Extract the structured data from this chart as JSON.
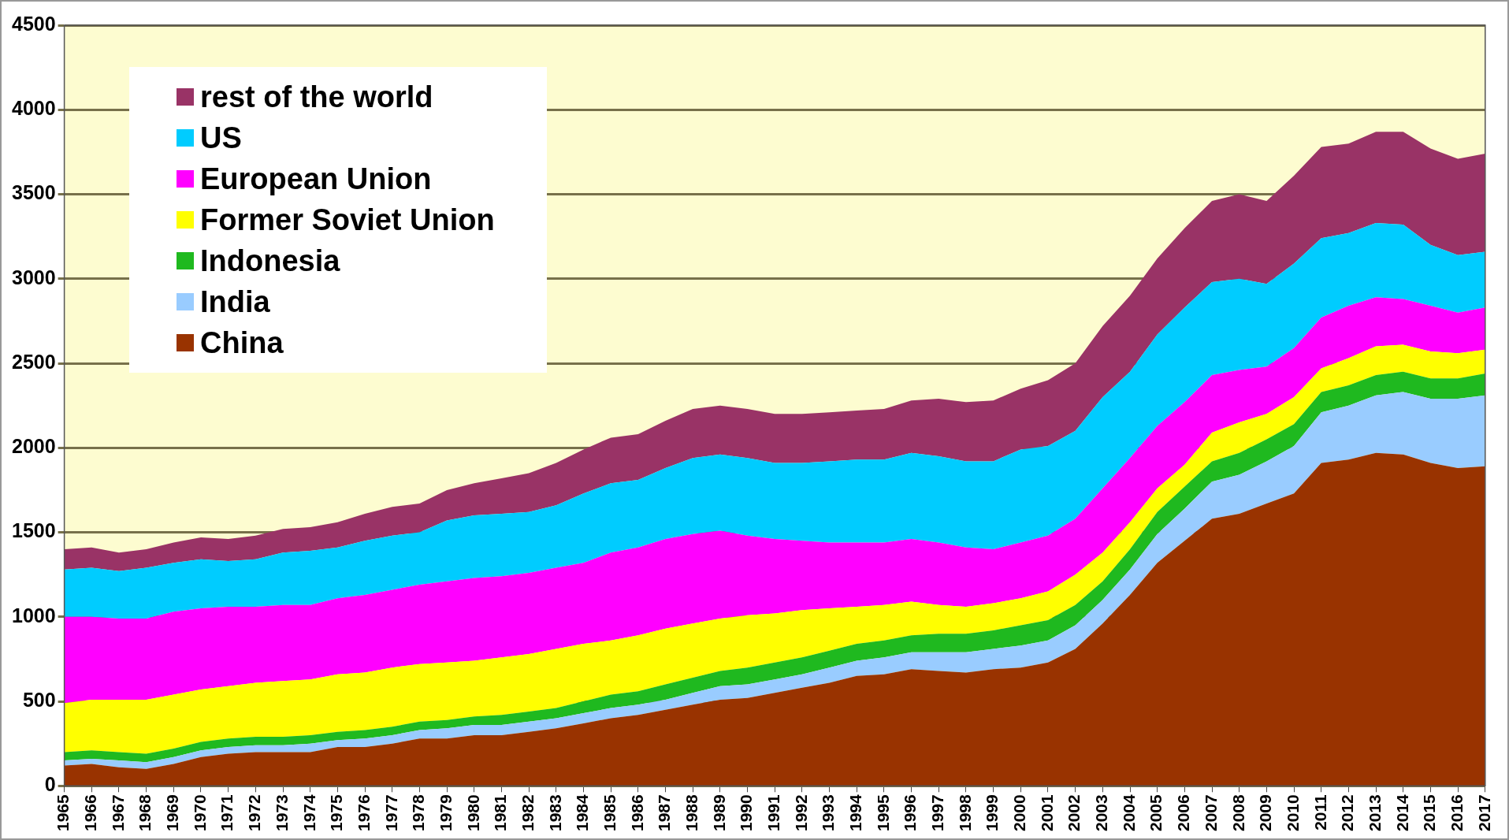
{
  "chart_data": {
    "type": "area",
    "stacked": true,
    "categories": [
      "1965",
      "1966",
      "1967",
      "1968",
      "1969",
      "1970",
      "1971",
      "1972",
      "1973",
      "1974",
      "1975",
      "1976",
      "1977",
      "1978",
      "1979",
      "1980",
      "1981",
      "1982",
      "1983",
      "1984",
      "1985",
      "1986",
      "1987",
      "1988",
      "1989",
      "1990",
      "1991",
      "1992",
      "1993",
      "1994",
      "1995",
      "1996",
      "1997",
      "1998",
      "1999",
      "2000",
      "2001",
      "2002",
      "2003",
      "2004",
      "2005",
      "2006",
      "2007",
      "2008",
      "2009",
      "2010",
      "2011",
      "2012",
      "2013",
      "2014",
      "2015",
      "2016",
      "2017"
    ],
    "series": [
      {
        "name": "China",
        "color": "#993300",
        "values": [
          120,
          130,
          110,
          100,
          130,
          170,
          190,
          200,
          200,
          200,
          230,
          230,
          250,
          280,
          280,
          300,
          300,
          320,
          340,
          370,
          400,
          420,
          450,
          480,
          510,
          520,
          550,
          580,
          610,
          650,
          660,
          690,
          680,
          670,
          690,
          700,
          730,
          810,
          960,
          1130,
          1320,
          1450,
          1580,
          1610,
          1670,
          1730,
          1910,
          1930,
          1970,
          1960,
          1910,
          1880,
          1890
        ]
      },
      {
        "name": "India",
        "color": "#99ccff",
        "values": [
          30,
          30,
          40,
          40,
          40,
          40,
          40,
          40,
          40,
          50,
          40,
          50,
          50,
          50,
          60,
          60,
          60,
          60,
          60,
          60,
          60,
          60,
          60,
          70,
          80,
          80,
          80,
          80,
          90,
          90,
          100,
          100,
          110,
          120,
          120,
          130,
          130,
          140,
          140,
          150,
          170,
          190,
          220,
          230,
          250,
          280,
          300,
          320,
          340,
          370,
          380,
          410,
          420
        ]
      },
      {
        "name": "Indonesia",
        "color": "#1fb91f",
        "values": [
          50,
          50,
          50,
          50,
          50,
          50,
          50,
          50,
          50,
          50,
          50,
          50,
          50,
          50,
          50,
          50,
          60,
          60,
          60,
          70,
          80,
          80,
          90,
          90,
          90,
          100,
          100,
          100,
          100,
          100,
          100,
          100,
          110,
          110,
          110,
          120,
          120,
          120,
          110,
          120,
          130,
          130,
          120,
          130,
          130,
          130,
          120,
          120,
          120,
          120,
          120,
          120,
          130
        ]
      },
      {
        "name": "Former Soviet Union",
        "color": "#ffff00",
        "values": [
          290,
          300,
          310,
          320,
          320,
          310,
          310,
          320,
          330,
          330,
          340,
          340,
          350,
          340,
          340,
          330,
          340,
          340,
          350,
          340,
          320,
          330,
          330,
          320,
          310,
          310,
          290,
          280,
          250,
          220,
          210,
          200,
          170,
          160,
          160,
          160,
          170,
          180,
          170,
          160,
          140,
          130,
          170,
          180,
          150,
          160,
          140,
          160,
          170,
          160,
          160,
          150,
          140
        ]
      },
      {
        "name": "European Union",
        "color": "#ff00ff",
        "values": [
          510,
          490,
          480,
          480,
          490,
          480,
          470,
          450,
          450,
          440,
          450,
          460,
          460,
          470,
          480,
          490,
          480,
          480,
          480,
          480,
          520,
          520,
          530,
          530,
          520,
          470,
          440,
          410,
          390,
          380,
          370,
          370,
          370,
          350,
          320,
          330,
          330,
          330,
          380,
          380,
          370,
          370,
          340,
          310,
          280,
          290,
          300,
          310,
          290,
          270,
          270,
          240,
          250
        ]
      },
      {
        "name": "US",
        "color": "#00ccff",
        "values": [
          280,
          290,
          280,
          300,
          290,
          290,
          270,
          280,
          310,
          320,
          300,
          320,
          320,
          310,
          360,
          370,
          370,
          360,
          370,
          410,
          410,
          400,
          420,
          450,
          450,
          460,
          450,
          460,
          480,
          490,
          490,
          510,
          510,
          510,
          520,
          550,
          530,
          520,
          540,
          510,
          540,
          560,
          550,
          540,
          490,
          500,
          470,
          430,
          440,
          440,
          360,
          340,
          330
        ]
      },
      {
        "name": "rest of the world",
        "color": "#993366",
        "values": [
          120,
          120,
          110,
          110,
          120,
          130,
          130,
          140,
          140,
          140,
          150,
          160,
          170,
          170,
          180,
          190,
          210,
          230,
          250,
          260,
          270,
          270,
          280,
          290,
          290,
          290,
          290,
          290,
          290,
          290,
          300,
          310,
          340,
          350,
          360,
          360,
          390,
          400,
          420,
          450,
          450,
          470,
          480,
          500,
          490,
          520,
          540,
          530,
          540,
          550,
          570,
          570,
          580
        ]
      }
    ],
    "ylim": [
      0,
      4500
    ],
    "yticks": [
      0,
      500,
      1000,
      1500,
      2000,
      2500,
      3000,
      3500,
      4000,
      4500
    ],
    "grid": "y",
    "legend": "top left"
  }
}
